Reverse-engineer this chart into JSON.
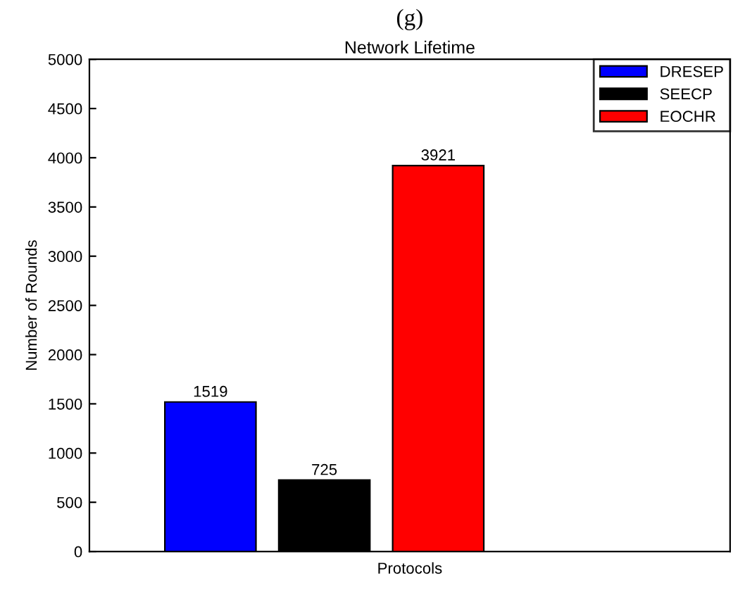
{
  "chart_data": {
    "type": "bar",
    "title": "Network Lifetime",
    "xlabel": "Protocols",
    "ylabel": "Number of Rounds",
    "annotations": [
      "(g)"
    ],
    "categories": [
      null
    ],
    "series": [
      {
        "name": "DRESEP",
        "color": "#0000ff",
        "values": [
          1519
        ]
      },
      {
        "name": "SEECP",
        "color": "#000000",
        "values": [
          725
        ]
      },
      {
        "name": "EOCHR",
        "color": "#ff0000",
        "values": [
          3921
        ]
      }
    ],
    "ylim": [
      0,
      5000
    ],
    "yticks": [
      0,
      500,
      1000,
      1500,
      2000,
      2500,
      3000,
      3500,
      4000,
      4500,
      5000
    ],
    "data_labels": true,
    "grid": false,
    "legend": "top right"
  }
}
